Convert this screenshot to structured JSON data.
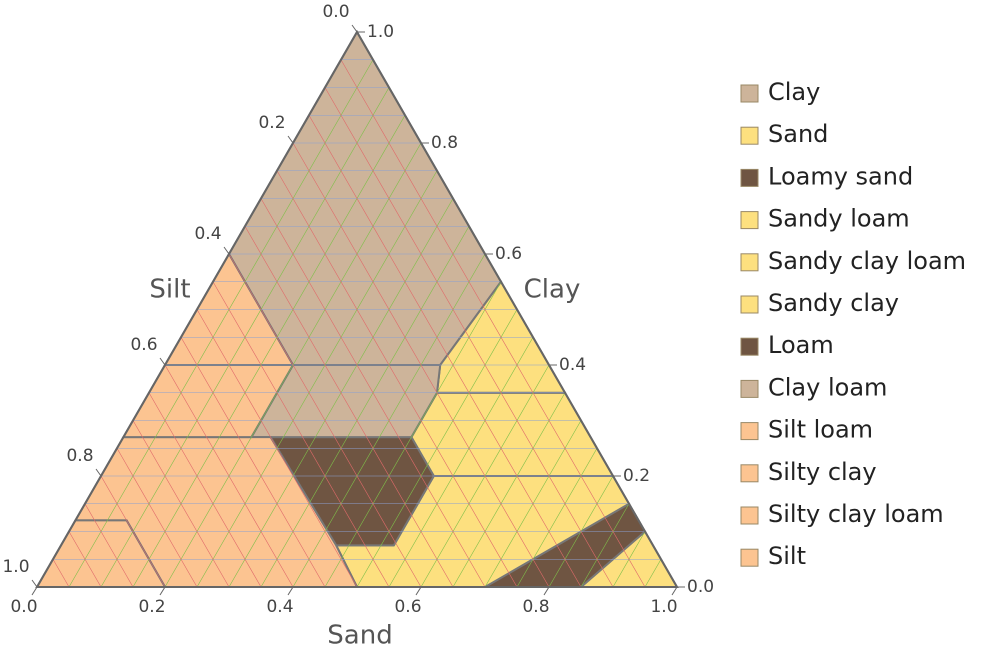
{
  "chart_data": {
    "type": "ternary",
    "axes": {
      "sand": "Sand",
      "silt": "Silt",
      "clay": "Clay"
    },
    "sand_ticks": [
      {
        "value": 0,
        "label": "0.0"
      },
      0.2,
      0.4,
      0.6,
      0.8,
      {
        "value": 1,
        "label": "1.0"
      }
    ],
    "silt_ticks": [
      {
        "value": 0,
        "label": "0.0"
      },
      0.2,
      0.4,
      0.6,
      0.8,
      {
        "value": 1,
        "label": "1.0"
      }
    ],
    "clay_ticks": [
      {
        "value": 0,
        "label": "0.0"
      },
      0.2,
      0.4,
      0.6,
      0.8,
      {
        "value": 1,
        "label": "1.0"
      }
    ],
    "grid": true,
    "regions": [
      {
        "name": "Clay",
        "color": "#cdb49a",
        "sand": [
          0,
          0,
          0.2,
          0.43,
          0.45
        ],
        "clay": [
          1,
          0.6,
          0.4,
          0.4,
          0.55
        ]
      },
      {
        "name": "Sand",
        "color": "#fde07f",
        "sand": [
          0.85,
          0.9,
          1
        ],
        "clay": [
          0,
          0.1,
          0
        ]
      },
      {
        "name": "Loamy sand",
        "color": "#6f5542",
        "sand": [
          0.7,
          0.85,
          0.9,
          0.85
        ],
        "clay": [
          0,
          0.15,
          0.1,
          0
        ]
      },
      {
        "name": "Sandy loam",
        "color": "#fde07f",
        "sand": [
          0.5,
          0.43,
          0.52,
          0.52,
          0.8,
          0.85,
          0.7
        ],
        "clay": [
          0,
          0.075,
          0.075,
          0.2,
          0.2,
          0.15,
          0
        ]
      },
      {
        "name": "Sandy clay loam",
        "color": "#fde07f",
        "sand": [
          0.45,
          0.65,
          0.8,
          0.52,
          0.45
        ],
        "clay": [
          0.35,
          0.35,
          0.2,
          0.2,
          0.27
        ]
      },
      {
        "name": "Sandy clay",
        "color": "#fde07f",
        "sand": [
          0.45,
          0.65,
          0.45,
          0.43
        ],
        "clay": [
          0.55,
          0.35,
          0.35,
          0.4
        ]
      },
      {
        "name": "Loam",
        "color": "#6f5542",
        "sand": [
          0.23,
          0.45,
          0.52,
          0.52,
          0.43
        ],
        "clay": [
          0.27,
          0.27,
          0.2,
          0.075,
          0.075
        ]
      },
      {
        "name": "Clay loam",
        "color": "#cdb49a",
        "sand": [
          0.2,
          0.2,
          0.45,
          0.45,
          0.43
        ],
        "clay": [
          0.4,
          0.27,
          0.27,
          0.35,
          0.4
        ]
      },
      {
        "name": "Silt loam",
        "color": "#fcc491",
        "sand": [
          0,
          0.23,
          0.43,
          0.5,
          0.2,
          0.08,
          0
        ],
        "clay": [
          0.27,
          0.27,
          0.075,
          0,
          0,
          0.12,
          0.12
        ]
      },
      {
        "name": "Silty clay",
        "color": "#fcc491",
        "sand": [
          0,
          0,
          0.2
        ],
        "clay": [
          0.6,
          0.4,
          0.4
        ]
      },
      {
        "name": "Silty clay loam",
        "color": "#fcc491",
        "sand": [
          0,
          0,
          0.2,
          0.2
        ],
        "clay": [
          0.4,
          0.27,
          0.27,
          0.4
        ]
      },
      {
        "name": "Silt",
        "color": "#fcc491",
        "sand": [
          0,
          0.08,
          0.2,
          0
        ],
        "clay": [
          0.12,
          0.12,
          0,
          0
        ]
      }
    ]
  }
}
